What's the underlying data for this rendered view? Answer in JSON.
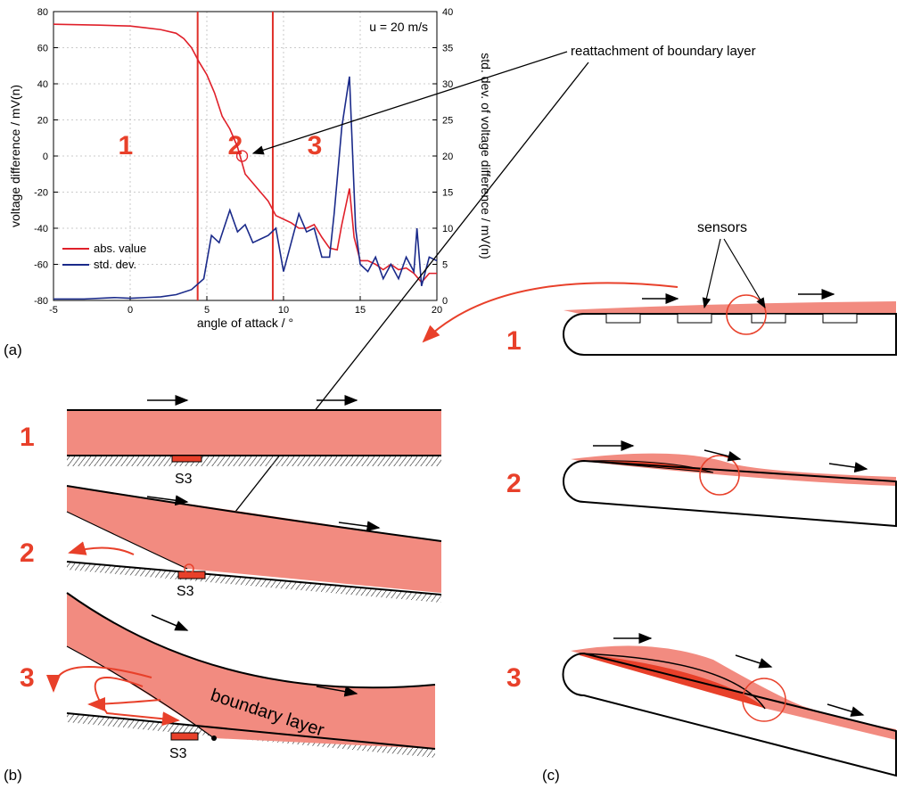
{
  "chart_data": {
    "type": "line",
    "xlabel": "angle of attack / °",
    "ylabel": "voltage difference / mV(n)",
    "y2label": "std. dev. of voltage difference / mV(n)",
    "xlim": [
      -5,
      20
    ],
    "xticks": [
      -5,
      0,
      5,
      10,
      15,
      20
    ],
    "ylim": [
      -80,
      80
    ],
    "yticks": [
      -80,
      -60,
      -40,
      -20,
      0,
      20,
      40,
      60,
      80
    ],
    "y2lim": [
      0,
      40
    ],
    "y2ticks": [
      0,
      5,
      10,
      15,
      20,
      25,
      30,
      35,
      40
    ],
    "grid": true,
    "legend": "lower left",
    "annotation": "u = 20 m/s",
    "region_labels": [
      "1",
      "2",
      "3"
    ],
    "region_boundaries": [
      4.4,
      9.3
    ],
    "region_boundary_color": "#e0302a",
    "marked_point": [
      7.3,
      0
    ],
    "series": [
      {
        "name": "abs. value",
        "color": "#e0202a",
        "x": [
          -5,
          -2,
          0,
          1,
          2,
          3,
          3.5,
          4,
          4.5,
          5,
          5.5,
          6,
          6.5,
          7,
          7.5,
          8,
          8.5,
          9,
          9.5,
          10,
          10.5,
          11,
          11.5,
          12,
          12.5,
          13,
          13.5,
          13.8,
          14,
          14.3,
          14.6,
          15,
          15.5,
          16,
          16.5,
          17,
          17.5,
          18,
          18.5,
          19,
          19.5,
          20
        ],
        "values": [
          73,
          72.5,
          72,
          71,
          70,
          68,
          65,
          60,
          52,
          45,
          35,
          22,
          15,
          5,
          -10,
          -15,
          -20,
          -25,
          -33,
          -35,
          -37,
          -40,
          -40,
          -38,
          -45,
          -51,
          -52,
          -38,
          -30,
          -18,
          -45,
          -58,
          -58,
          -60,
          -63,
          -60,
          -63,
          -62,
          -65,
          -70,
          -65,
          -65
        ]
      },
      {
        "name": "std. dev.",
        "color": "#1a2a8a",
        "axis": "y2",
        "x": [
          -5,
          -3,
          -1,
          0,
          1,
          2,
          3,
          4,
          4.8,
          5.3,
          5.8,
          6.5,
          7,
          7.5,
          8,
          8.5,
          9,
          9.5,
          10,
          10.5,
          11,
          11.5,
          12,
          12.5,
          13,
          13.3,
          13.8,
          14.3,
          14.7,
          15,
          15.5,
          16,
          16.5,
          17,
          17.5,
          18,
          18.5,
          18.7,
          19,
          19.5,
          20
        ],
        "values": [
          0.2,
          0.2,
          0.4,
          0.3,
          0.4,
          0.5,
          0.8,
          1.5,
          3,
          9,
          8,
          12.5,
          9.5,
          10.5,
          8,
          8.5,
          9,
          10,
          4,
          8,
          12,
          9.5,
          10,
          6,
          6,
          12,
          24,
          31,
          10,
          5,
          4,
          6,
          3,
          5,
          3,
          6,
          4,
          10,
          2,
          6,
          5.5
        ]
      }
    ]
  },
  "figure": {
    "callout": "reattachment of boundary layer",
    "panel_labels": [
      "(a)",
      "(b)",
      "(c)"
    ],
    "b_labels": [
      "1",
      "2",
      "3"
    ],
    "c_labels": [
      "1",
      "2",
      "3"
    ],
    "sensor_labels": [
      "S3",
      "S3",
      "S3"
    ],
    "sensors": "sensors",
    "boundary_layer": "boundary layer"
  }
}
